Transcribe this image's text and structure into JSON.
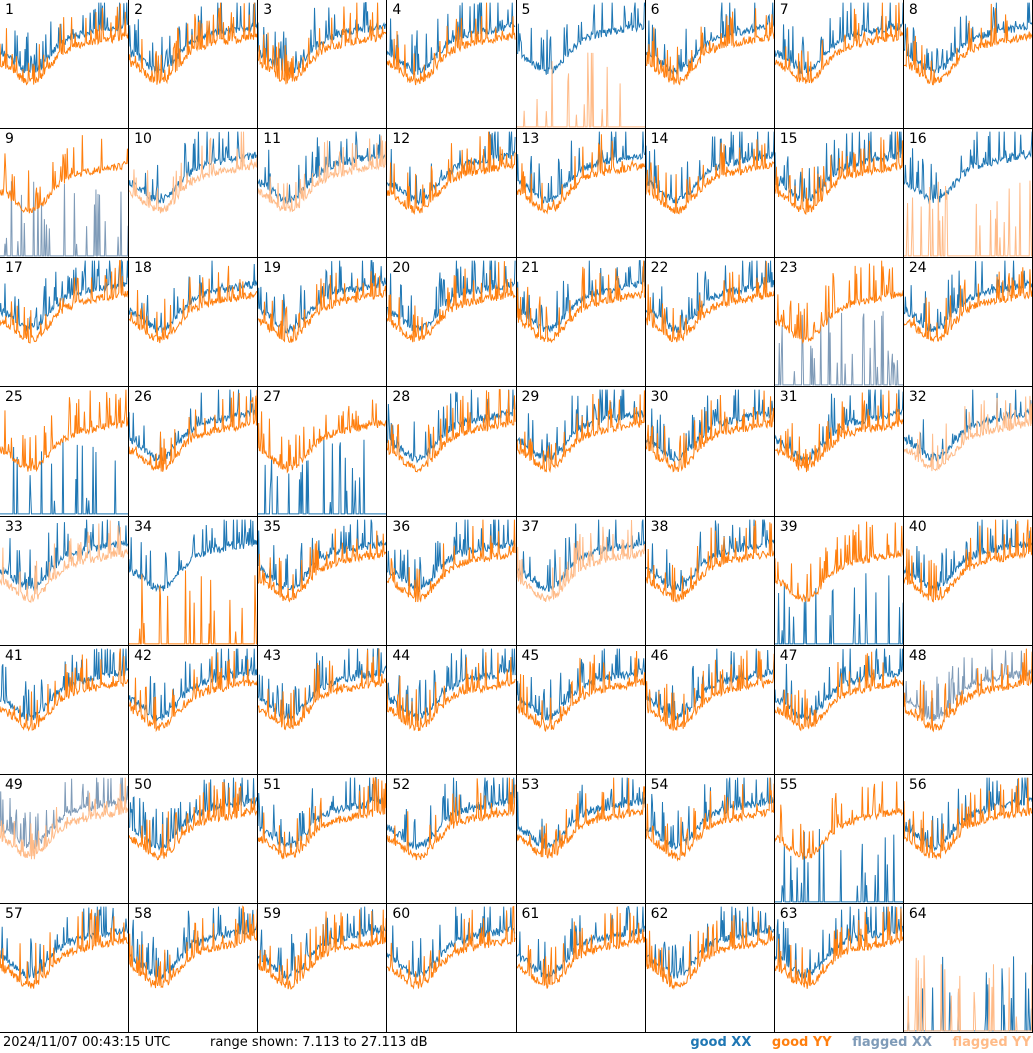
{
  "chart_data": {
    "type": "line",
    "panel_count": 64,
    "panels": [
      "1",
      "2",
      "3",
      "4",
      "5",
      "6",
      "7",
      "8",
      "9",
      "10",
      "11",
      "12",
      "13",
      "14",
      "15",
      "16",
      "17",
      "18",
      "19",
      "20",
      "21",
      "22",
      "23",
      "24",
      "25",
      "26",
      "27",
      "28",
      "29",
      "30",
      "31",
      "32",
      "33",
      "34",
      "35",
      "36",
      "37",
      "38",
      "39",
      "40",
      "41",
      "42",
      "43",
      "44",
      "45",
      "46",
      "47",
      "48",
      "49",
      "50",
      "51",
      "52",
      "53",
      "54",
      "55",
      "56",
      "57",
      "58",
      "59",
      "60",
      "61",
      "62",
      "63",
      "64"
    ],
    "flags": {
      "flagged_xx": [
        "9",
        "23",
        "48",
        "49"
      ],
      "flagged_yy": [
        "5",
        "10",
        "11",
        "16",
        "32",
        "33",
        "37",
        "49",
        "64"
      ],
      "dropout_xx": [
        "9",
        "23",
        "25",
        "27",
        "39",
        "55",
        "64"
      ],
      "dropout_yy": [
        "5",
        "16",
        "34",
        "64"
      ]
    },
    "series": [
      {
        "name": "good XX",
        "color": "#1f77b4"
      },
      {
        "name": "good YY",
        "color": "#ff7f0e"
      },
      {
        "name": "flagged XX",
        "color": "#7f9bb8"
      },
      {
        "name": "flagged YY",
        "color": "#ffbb88"
      }
    ],
    "range_db": [
      7.113,
      27.113
    ],
    "grid": "8x8"
  },
  "footer": {
    "timestamp": "2024/11/07 00:43:15 UTC",
    "range_text": "range shown: 7.113 to 27.113 dB",
    "legend": {
      "good_xx": "good XX",
      "good_yy": "good YY",
      "flagged_xx": "flagged XX",
      "flagged_yy": "flagged YY"
    }
  }
}
